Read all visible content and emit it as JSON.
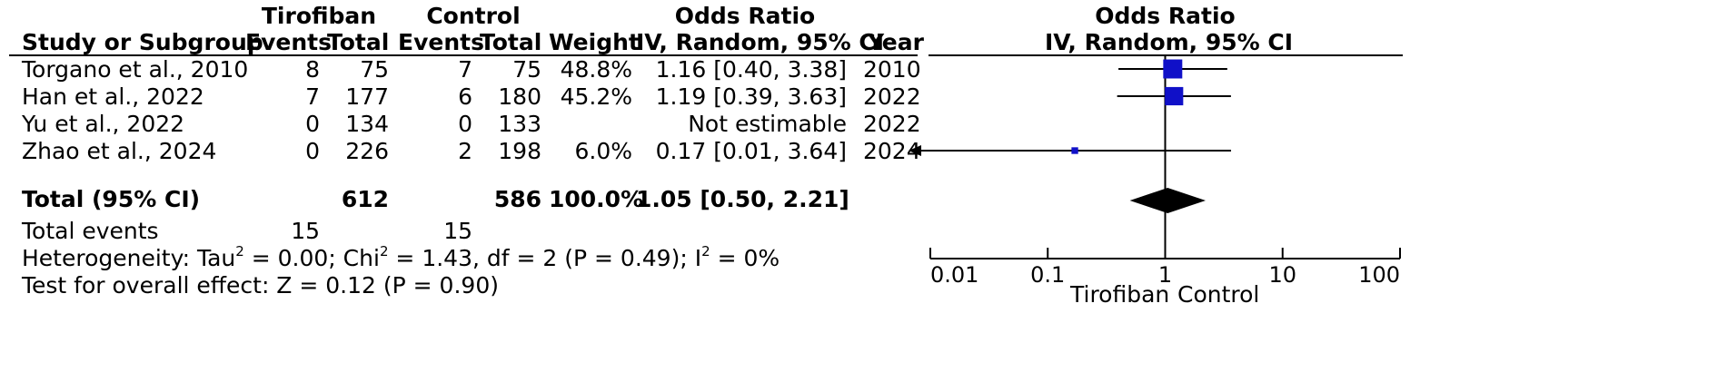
{
  "headers": {
    "group1": "Tirofiban",
    "group2": "Control",
    "or_left": "Odds Ratio",
    "or_left_sub": "IV, Random, 95% CI",
    "or_right": "Odds Ratio",
    "or_right_sub": "IV, Random, 95% CI",
    "study": "Study or Subgroup",
    "events1": "Events",
    "total1": "Total",
    "events2": "Events",
    "total2": "Total",
    "weight": "Weight",
    "year": "Year"
  },
  "studies": [
    {
      "name": "Torgano et al., 2010",
      "events1": "8",
      "total1": "75",
      "events2": "7",
      "total2": "75",
      "weight": "48.8%",
      "ci": "1.16 [0.40, 3.38]",
      "year": "2010"
    },
    {
      "name": "Han et al., 2022",
      "events1": "7",
      "total1": "177",
      "events2": "6",
      "total2": "180",
      "weight": "45.2%",
      "ci": "1.19 [0.39, 3.63]",
      "year": "2022"
    },
    {
      "name": "Yu et al., 2022",
      "events1": "0",
      "total1": "134",
      "events2": "0",
      "total2": "133",
      "weight": "",
      "ci": "Not estimable",
      "year": "2022"
    },
    {
      "name": "Zhao et al., 2024",
      "events1": "0",
      "total1": "226",
      "events2": "2",
      "total2": "198",
      "weight": "6.0%",
      "ci": "0.17 [0.01, 3.64]",
      "year": "2024"
    }
  ],
  "total": {
    "label": "Total (95% CI)",
    "total1": "612",
    "total2": "586",
    "weight": "100.0%",
    "ci": "1.05 [0.50, 2.21]"
  },
  "total_events": {
    "label": "Total events",
    "events1": "15",
    "events2": "15"
  },
  "heterogeneity": {
    "prefix": "Heterogeneity: Tau",
    "tau_sup": "2",
    "tau_val": " = 0.00; Chi",
    "chi_sup": "2",
    "chi_val": " = 1.43, df = 2 (P = 0.49); I",
    "i_sup": "2",
    "i_val": " = 0%"
  },
  "overall_effect": "Test for overall effect: Z = 0.12 (P = 0.90)",
  "favours": {
    "left": "Tirofiban",
    "right": "Control"
  },
  "chart_data": {
    "type": "forest",
    "scale": "log",
    "xlim": [
      0.01,
      100
    ],
    "ticks": [
      0.01,
      0.1,
      1,
      10,
      100
    ],
    "tick_labels": [
      "0.01",
      "0.1",
      "1",
      "10",
      "100"
    ],
    "reference_line": 1,
    "studies": [
      {
        "name": "Torgano et al., 2010",
        "or": 1.16,
        "lower": 0.4,
        "upper": 3.38,
        "weight": 48.8
      },
      {
        "name": "Han et al., 2022",
        "or": 1.19,
        "lower": 0.39,
        "upper": 3.63,
        "weight": 45.2
      },
      {
        "name": "Yu et al., 2022",
        "or": null,
        "lower": null,
        "upper": null,
        "weight": 0
      },
      {
        "name": "Zhao et al., 2024",
        "or": 0.17,
        "lower": 0.01,
        "upper": 3.64,
        "weight": 6.0
      }
    ],
    "pooled": {
      "or": 1.05,
      "lower": 0.5,
      "upper": 2.21
    },
    "colors": {
      "square": "#1010c8",
      "diamond": "#000000",
      "line": "#000000"
    }
  }
}
